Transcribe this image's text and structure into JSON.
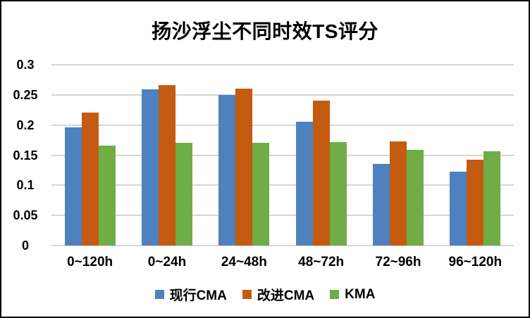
{
  "chart_data": {
    "type": "bar",
    "title": "扬沙浮尘不同时效TS评分",
    "categories": [
      "0~120h",
      "0~24h",
      "24~48h",
      "48~72h",
      "72~96h",
      "96~120h"
    ],
    "series": [
      {
        "name": "现行CMA",
        "color": "#4E81BD",
        "values": [
          0.196,
          0.259,
          0.25,
          0.206,
          0.135,
          0.123
        ]
      },
      {
        "name": "改进CMA",
        "color": "#C55A11",
        "values": [
          0.221,
          0.266,
          0.26,
          0.241,
          0.173,
          0.142
        ]
      },
      {
        "name": "KMA",
        "color": "#70AD47",
        "values": [
          0.166,
          0.171,
          0.171,
          0.172,
          0.159,
          0.157
        ]
      }
    ],
    "xlabel": "",
    "ylabel": "",
    "ylim": [
      0,
      0.3
    ],
    "yticks": [
      0,
      0.05,
      0.1,
      0.15,
      0.2,
      0.25,
      0.3
    ],
    "ytick_labels": [
      "0",
      "0.05",
      "0.1",
      "0.15",
      "0.2",
      "0.25",
      "0.3"
    ],
    "grid": true,
    "grid_color": "#D6D6D6",
    "text_color": "#000000",
    "background_color": "#FFFFFF",
    "frame_border_color": "#000000",
    "legend_position": "bottom"
  }
}
